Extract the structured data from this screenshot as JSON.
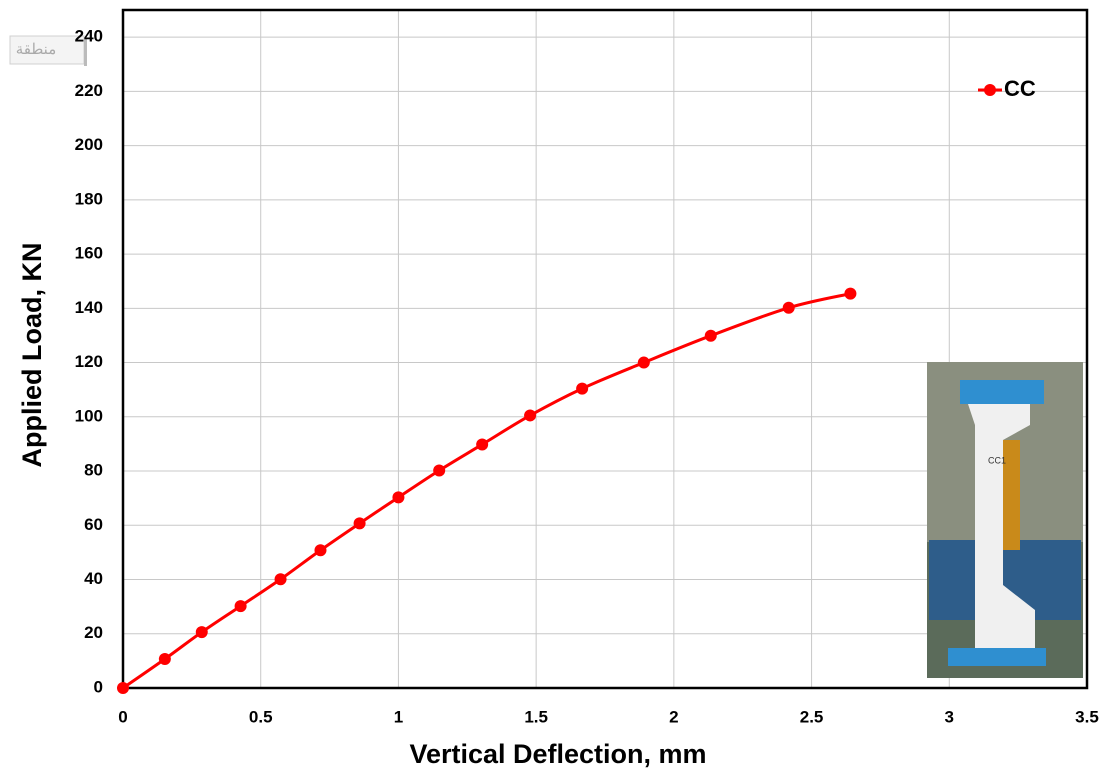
{
  "chart_data": {
    "type": "line",
    "x_label": "Vertical Deflection, mm",
    "y_label": "Applied Load, KN",
    "x": [
      0,
      0.152,
      0.286,
      0.427,
      0.572,
      0.717,
      0.859,
      1.0,
      1.148,
      1.304,
      1.478,
      1.667,
      1.891,
      2.134,
      2.417,
      2.641
    ],
    "series": [
      {
        "name": "CC",
        "color": "#ff0000",
        "values": [
          0,
          10.7,
          20.6,
          30.2,
          40.1,
          50.8,
          60.7,
          70.3,
          80.2,
          89.8,
          100.5,
          110.4,
          120,
          129.9,
          140.2,
          145.4
        ]
      }
    ],
    "xlim": [
      0,
      3.5
    ],
    "xticks": [
      0,
      0.5,
      1,
      1.5,
      2,
      2.5,
      3,
      3.5
    ],
    "ylim": [
      0,
      250
    ],
    "yticks": [
      0,
      20,
      40,
      60,
      80,
      100,
      120,
      140,
      160,
      180,
      200,
      220,
      240
    ],
    "grid": true,
    "legend": "top-right",
    "annotations": [
      "منطقة",
      "CC1"
    ]
  }
}
